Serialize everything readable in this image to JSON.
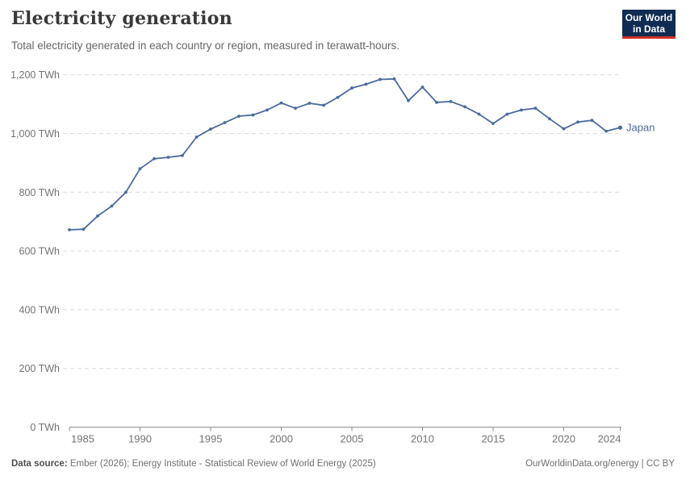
{
  "header": {
    "title": "Electricity generation",
    "subtitle": "Total electricity generated in each country or region, measured in terawatt-hours.",
    "logo": {
      "line1": "Our World",
      "line2": "in Data",
      "bg_color": "#112c52",
      "accent_color": "#d12f22"
    }
  },
  "chart_data": {
    "type": "line",
    "title": "Electricity generation",
    "xlabel": "",
    "ylabel": "TWh",
    "xlim": [
      1985,
      2024
    ],
    "ylim": [
      0,
      1200
    ],
    "grid": "horizontal-dashed",
    "legend_position": "end-of-line-label",
    "x_ticks": [
      1985,
      1990,
      1995,
      2000,
      2005,
      2010,
      2015,
      2020,
      2024
    ],
    "y_ticks": [
      {
        "value": 0,
        "label": "0 TWh"
      },
      {
        "value": 200,
        "label": "200 TWh"
      },
      {
        "value": 400,
        "label": "400 TWh"
      },
      {
        "value": 600,
        "label": "600 TWh"
      },
      {
        "value": 800,
        "label": "800 TWh"
      },
      {
        "value": 1000,
        "label": "1,000 TWh"
      },
      {
        "value": 1200,
        "label": "1,200 TWh"
      }
    ],
    "series": [
      {
        "name": "Japan",
        "color": "#4c6a9c",
        "unit": "TWh",
        "x": [
          1985,
          1986,
          1987,
          1988,
          1989,
          1990,
          1991,
          1992,
          1993,
          1994,
          1995,
          1996,
          1997,
          1998,
          1999,
          2000,
          2001,
          2002,
          2003,
          2004,
          2005,
          2006,
          2007,
          2008,
          2009,
          2010,
          2011,
          2012,
          2013,
          2014,
          2015,
          2016,
          2017,
          2018,
          2019,
          2020,
          2021,
          2022,
          2023,
          2024
        ],
        "values": [
          672,
          674,
          719,
          753,
          800,
          880,
          914,
          919,
          925,
          988,
          1015,
          1037,
          1059,
          1063,
          1080,
          1104,
          1086,
          1103,
          1096,
          1123,
          1155,
          1168,
          1184,
          1186,
          1112,
          1158,
          1106,
          1109,
          1091,
          1066,
          1034,
          1066,
          1080,
          1086,
          1050,
          1016,
          1039,
          1045,
          1008,
          1020
        ]
      }
    ]
  },
  "footer": {
    "source_label": "Data source:",
    "source_text": " Ember (2026); Energy Institute - Statistical Review of World Energy (2025)",
    "right_text": "OurWorldinData.org/energy | CC BY"
  }
}
